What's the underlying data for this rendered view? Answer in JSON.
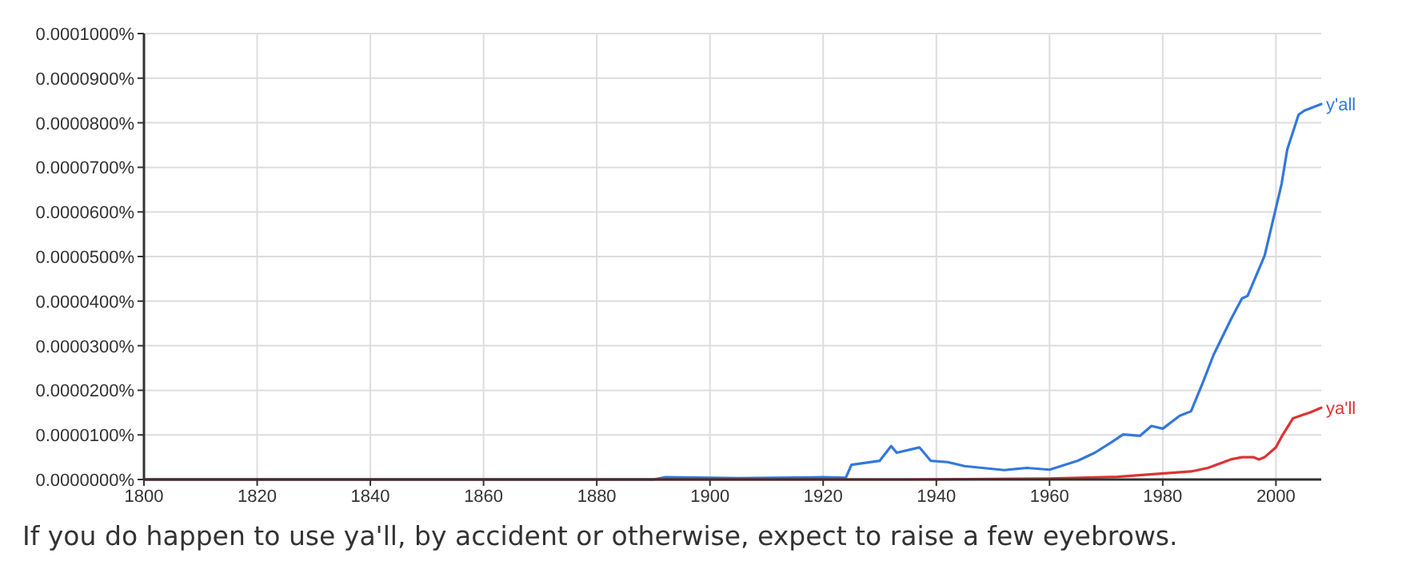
{
  "chart_data": {
    "type": "line",
    "xlim": [
      1800,
      2008
    ],
    "xticks": [
      1800,
      1820,
      1840,
      1860,
      1880,
      1900,
      1920,
      1940,
      1960,
      1980,
      2000
    ],
    "ylim": [
      0,
      0.0001
    ],
    "yticks": [
      {
        "value": 0,
        "label": "0.0000000%"
      },
      {
        "value": 1e-05,
        "label": "0.0000100%"
      },
      {
        "value": 2e-05,
        "label": "0.0000200%"
      },
      {
        "value": 3e-05,
        "label": "0.0000300%"
      },
      {
        "value": 4e-05,
        "label": "0.0000400%"
      },
      {
        "value": 5e-05,
        "label": "0.0000500%"
      },
      {
        "value": 6e-05,
        "label": "0.0000600%"
      },
      {
        "value": 7e-05,
        "label": "0.0000700%"
      },
      {
        "value": 8e-05,
        "label": "0.0000800%"
      },
      {
        "value": 9e-05,
        "label": "0.0000900%"
      },
      {
        "value": 0.0001,
        "label": "0.0001000%"
      }
    ],
    "grid": true,
    "legend": false,
    "annotations": [
      "If you do happen to use ya'll, by accident or otherwise, expect to raise a few eyebrows."
    ],
    "series": [
      {
        "name": "y'all",
        "color": "#3377dd",
        "x": [
          1800,
          1890,
          1892,
          1900,
          1905,
          1920,
          1924,
          1925,
          1930,
          1932,
          1933,
          1937,
          1939,
          1942,
          1945,
          1952,
          1956,
          1960,
          1962,
          1965,
          1968,
          1971,
          1973,
          1976,
          1978,
          1980,
          1983,
          1985,
          1987,
          1989,
          1992,
          1993,
          1994,
          1995,
          1998,
          2000,
          2001,
          2002,
          2004,
          2005,
          2008
        ],
        "values": [
          0,
          0,
          5e-07,
          4e-07,
          3e-07,
          5e-07,
          4e-07,
          3.3e-06,
          4.2e-06,
          7.5e-06,
          6e-06,
          7.2e-06,
          4.2e-06,
          3.9e-06,
          3e-06,
          2.1e-06,
          2.6e-06,
          2.2e-06,
          3e-06,
          4.2e-06,
          6e-06,
          8.4e-06,
          1.01e-05,
          9.8e-06,
          1.2e-05,
          1.14e-05,
          1.43e-05,
          1.53e-05,
          2.15e-05,
          2.8e-05,
          3.58e-05,
          3.82e-05,
          4.06e-05,
          4.12e-05,
          5.02e-05,
          6.09e-05,
          6.63e-05,
          7.4e-05,
          8.18e-05,
          8.27e-05,
          8.42e-05
        ]
      },
      {
        "name": "ya'll",
        "color": "#dd3333",
        "x": [
          1800,
          1935,
          1960,
          1972,
          1985,
          1988,
          1992,
          1994,
          1996,
          1997,
          1998,
          2000,
          2001,
          2003,
          2005,
          2006,
          2008
        ],
        "values": [
          0,
          0,
          2e-07,
          6e-07,
          1.8e-06,
          2.6e-06,
          4.5e-06,
          5e-06,
          5e-06,
          4.5e-06,
          5e-06,
          7.2e-06,
          9.6e-06,
          1.37e-05,
          1.46e-05,
          1.5e-05,
          1.61e-05
        ]
      }
    ]
  }
}
